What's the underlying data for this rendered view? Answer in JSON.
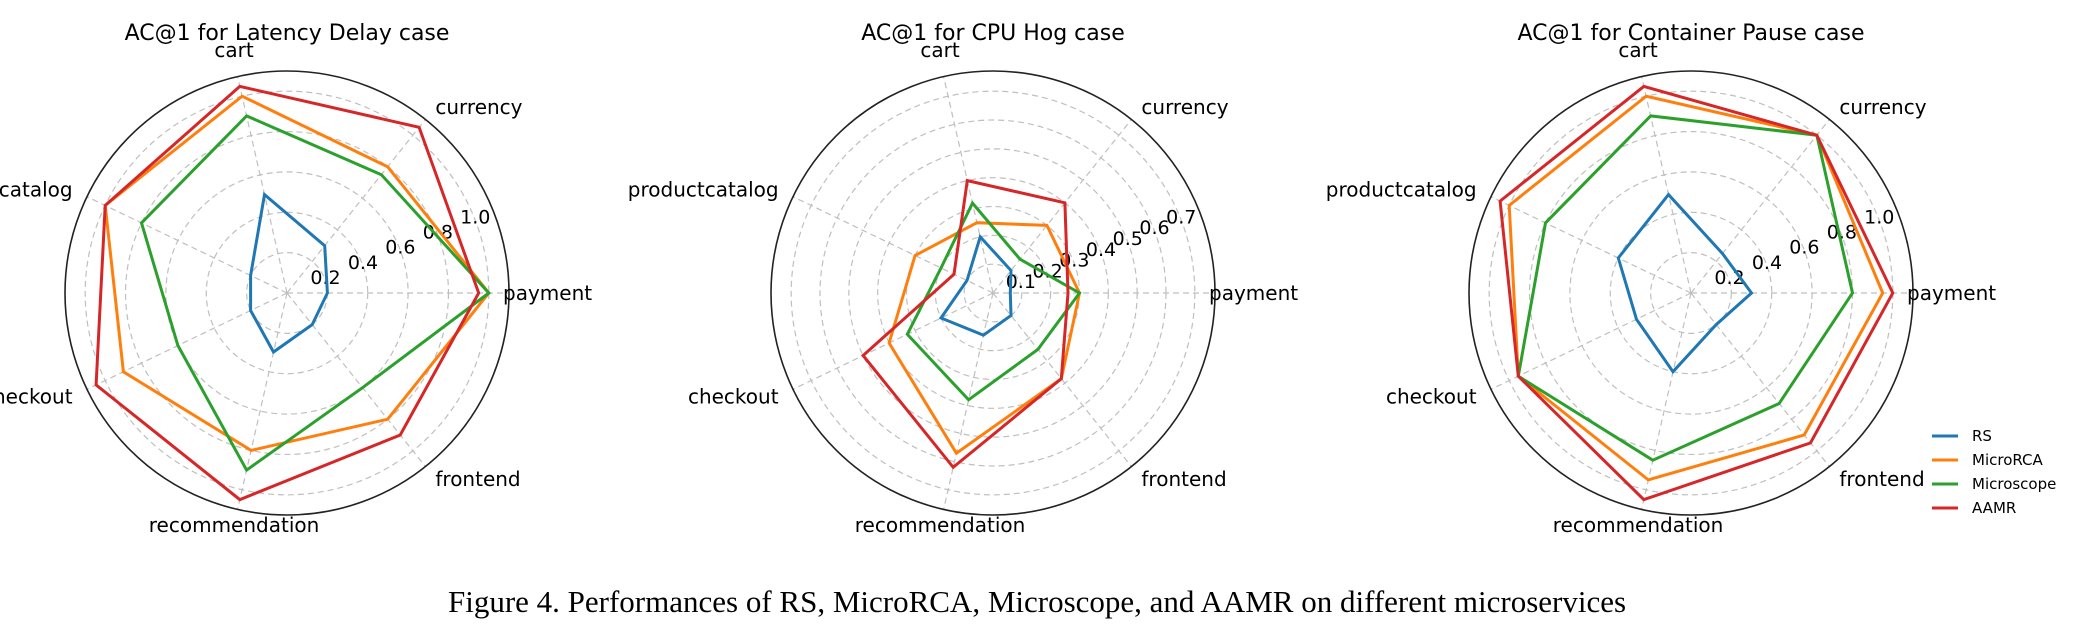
{
  "caption": "Figure 4. Performances of RS, MicroRCA, Microscope, and AAMR on different microservices",
  "legend": [
    {
      "name": "RS",
      "color": "#1f77b4"
    },
    {
      "name": "MicroRCA",
      "color": "#ff7f0e"
    },
    {
      "name": "Microscope",
      "color": "#2ca02c"
    },
    {
      "name": "AAMR",
      "color": "#d62728"
    }
  ],
  "chart_data": [
    {
      "type": "radar",
      "title": "AC@1 for Latency Delay case",
      "axes": [
        "payment",
        "currency",
        "cart",
        "productcatalog",
        "checkout",
        "recommendation",
        "frontend"
      ],
      "rmax": 1.1,
      "ticks": [
        0.2,
        0.4,
        0.6,
        0.8,
        1.0
      ],
      "tick_labels": [
        "0.2",
        "0.4",
        "0.6",
        "0.8",
        "1.0"
      ],
      "grid": true,
      "series": [
        {
          "name": "RS",
          "values": [
            0.2,
            0.3,
            0.5,
            0.2,
            0.2,
            0.3,
            0.2
          ]
        },
        {
          "name": "MicroRCA",
          "values": [
            1.0,
            0.8,
            1.0,
            1.0,
            0.9,
            0.8,
            0.8
          ]
        },
        {
          "name": "Microscope",
          "values": [
            1.0,
            0.75,
            0.9,
            0.8,
            0.6,
            0.9,
            0.6
          ]
        },
        {
          "name": "AAMR",
          "values": [
            0.95,
            1.05,
            1.05,
            1.0,
            1.05,
            1.05,
            0.9
          ]
        }
      ]
    },
    {
      "type": "radar",
      "title": "AC@1 for CPU Hog case",
      "axes": [
        "payment",
        "currency",
        "cart",
        "productcatalog",
        "checkout",
        "recommendation",
        "frontend"
      ],
      "rmax": 0.77,
      "ticks": [
        0.1,
        0.2,
        0.3,
        0.4,
        0.5,
        0.6,
        0.7
      ],
      "tick_labels": [
        "0.1",
        "0.2",
        "0.3",
        "0.4",
        "0.5",
        "0.6",
        "0.7"
      ],
      "grid": true,
      "series": [
        {
          "name": "RS",
          "values": [
            0.06,
            0.1,
            0.2,
            0.1,
            0.2,
            0.15,
            0.1
          ]
        },
        {
          "name": "MicroRCA",
          "values": [
            0.3,
            0.3,
            0.25,
            0.3,
            0.4,
            0.57,
            0.38
          ]
        },
        {
          "name": "Microscope",
          "values": [
            0.3,
            0.15,
            0.32,
            0.2,
            0.33,
            0.38,
            0.25
          ]
        },
        {
          "name": "AAMR",
          "values": [
            0.26,
            0.4,
            0.4,
            0.15,
            0.5,
            0.62,
            0.38
          ]
        }
      ]
    },
    {
      "type": "radar",
      "title": "AC@1 for Container Pause case",
      "axes": [
        "payment",
        "currency",
        "cart",
        "productcatalog",
        "checkout",
        "recommendation",
        "frontend"
      ],
      "rmax": 1.1,
      "ticks": [
        0.2,
        0.4,
        0.6,
        0.8,
        1.0
      ],
      "tick_labels": [
        "0.2",
        "0.4",
        "0.6",
        "0.8",
        "1.0"
      ],
      "grid": true,
      "series": [
        {
          "name": "RS",
          "values": [
            0.3,
            0.25,
            0.5,
            0.4,
            0.3,
            0.4,
            0.2
          ]
        },
        {
          "name": "MicroRCA",
          "values": [
            0.95,
            1.0,
            1.0,
            1.0,
            0.95,
            0.95,
            0.9
          ]
        },
        {
          "name": "Microscope",
          "values": [
            0.8,
            1.0,
            0.9,
            0.8,
            0.95,
            0.85,
            0.7
          ]
        },
        {
          "name": "AAMR",
          "values": [
            1.0,
            1.0,
            1.05,
            1.05,
            0.95,
            1.05,
            0.95
          ]
        }
      ]
    }
  ]
}
